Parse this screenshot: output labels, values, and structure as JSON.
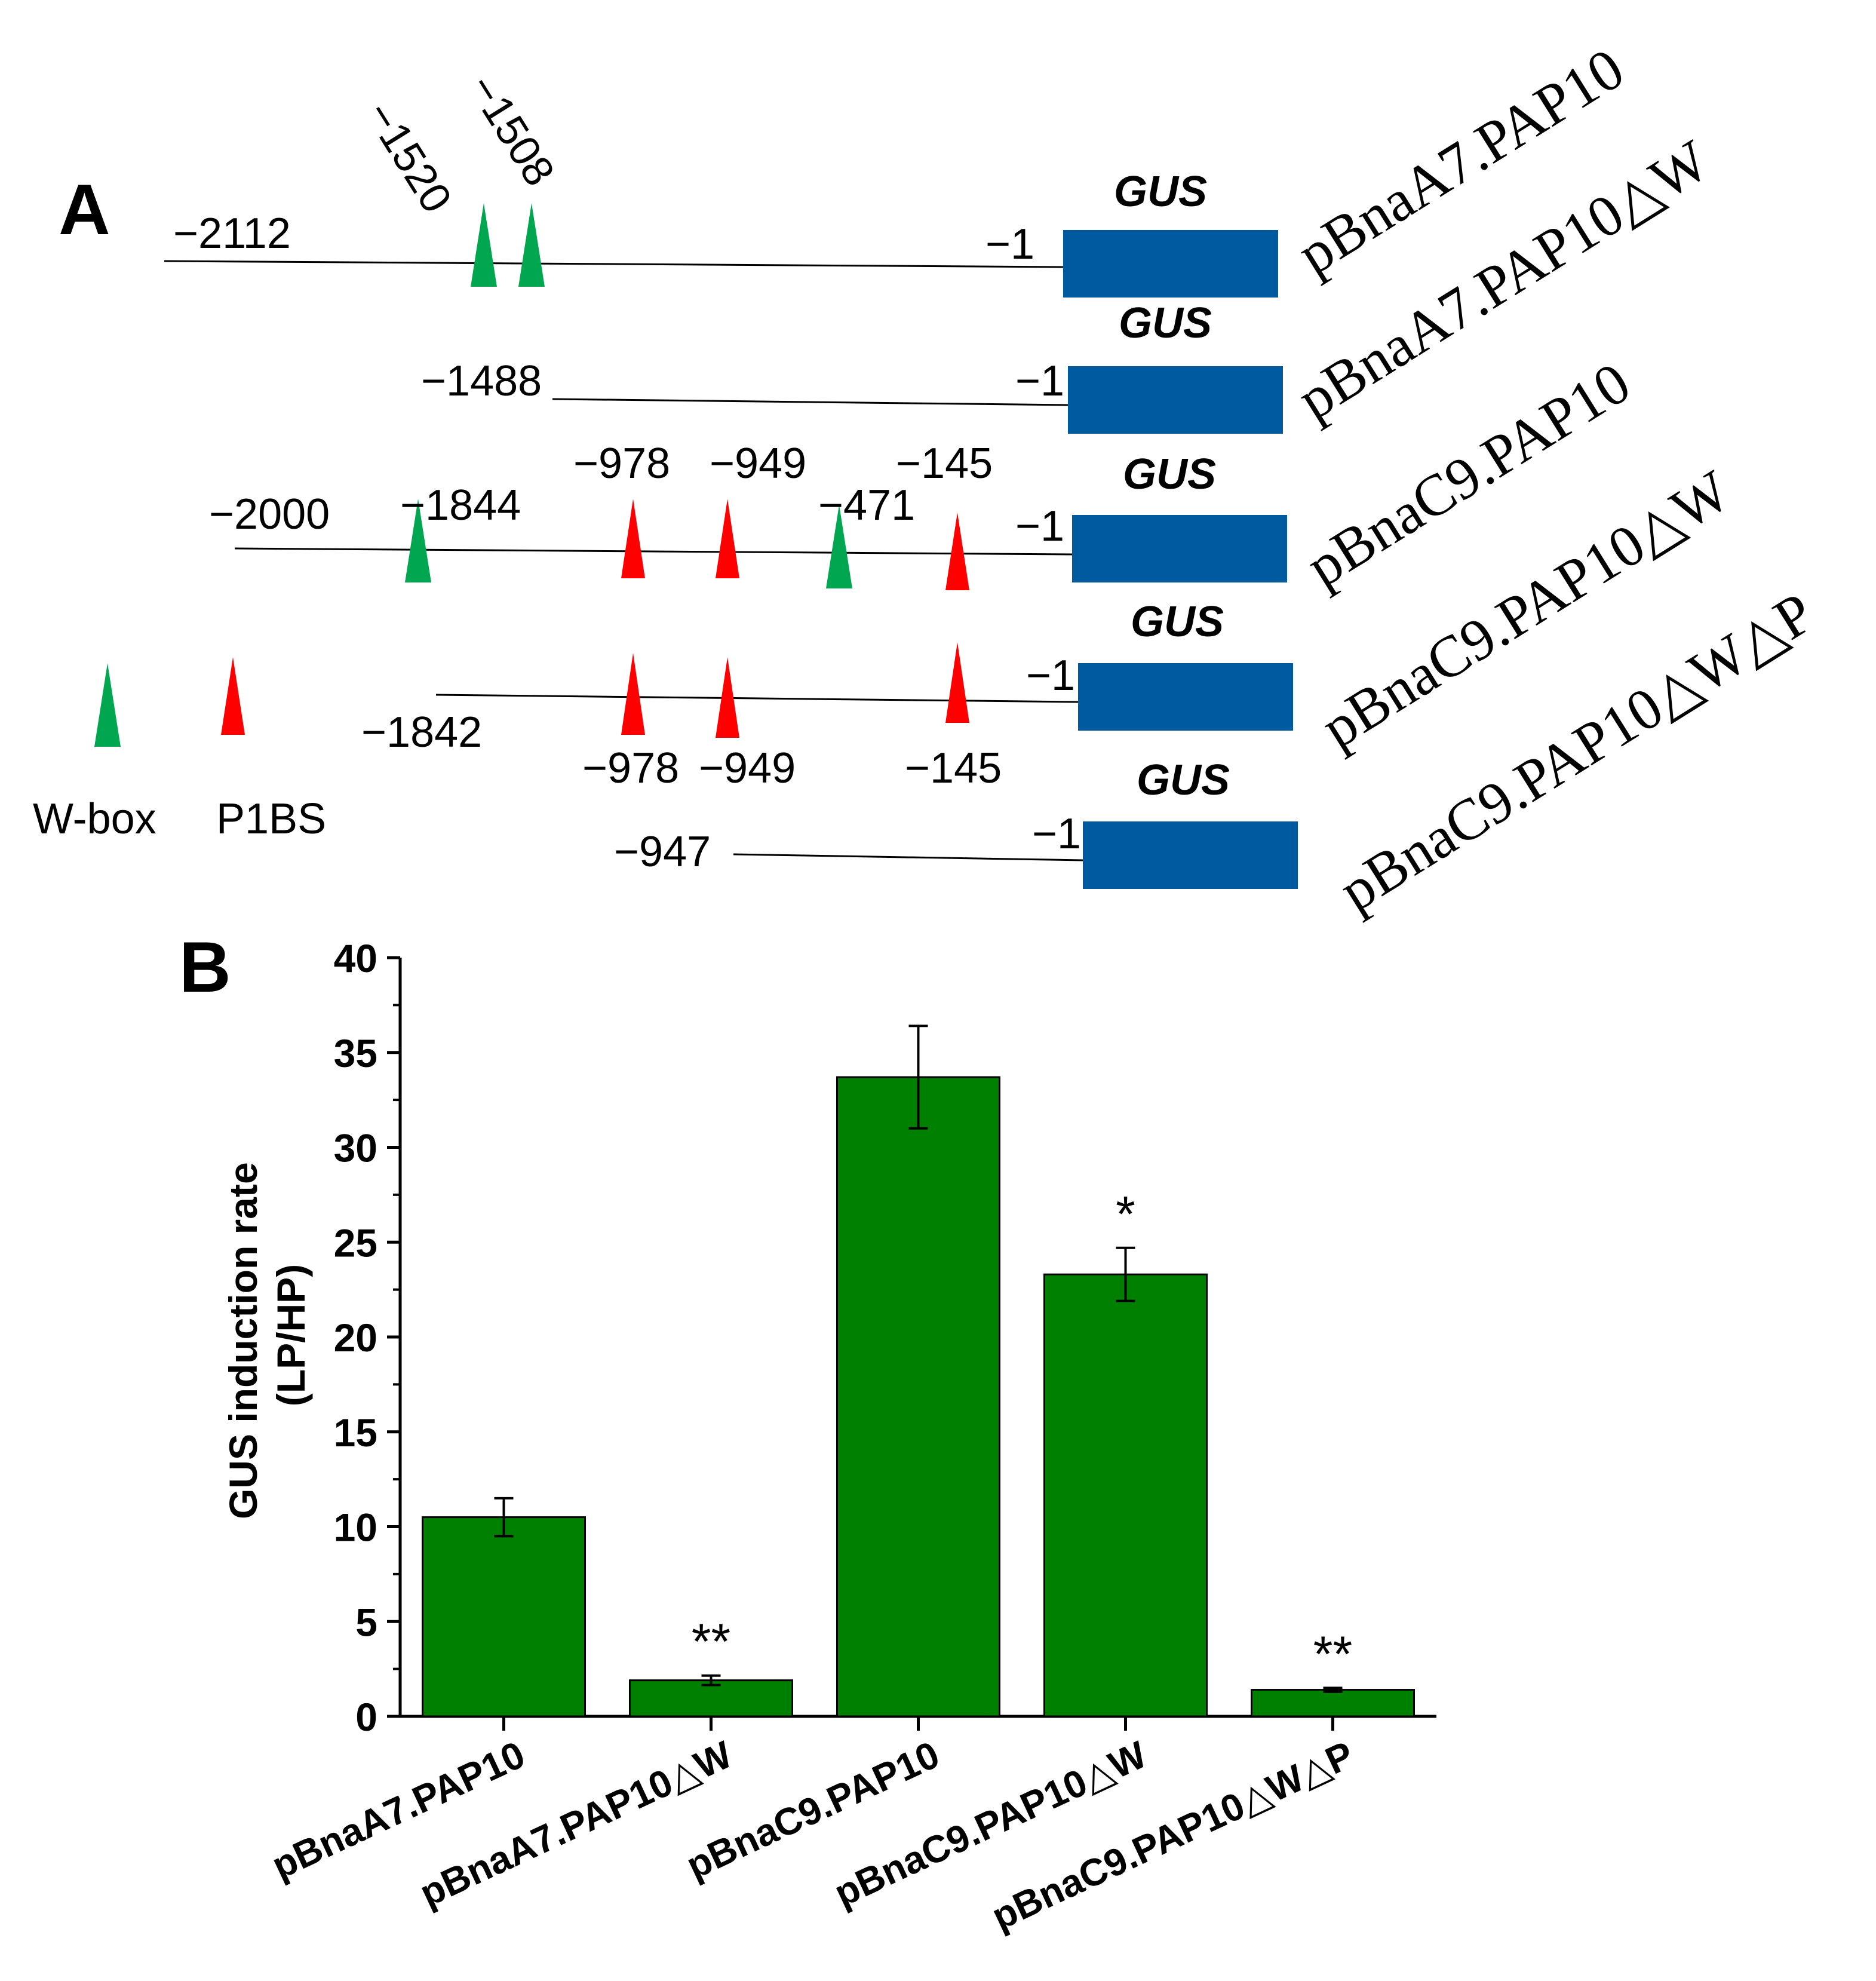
{
  "colors": {
    "green_box": "#00a650",
    "red_box": "#ff0000",
    "gus_box": "#005aa0",
    "bar_fill": "#008000",
    "ink": "#000000"
  },
  "panel_a": {
    "label": "A",
    "gus_label": "GUS",
    "legend": {
      "wbox_label": "W-box",
      "p1bs_label": "P1BS"
    },
    "constructs": [
      {
        "name": "pBnaA7.PAP10",
        "start": "−2112",
        "end": "−1",
        "sites": [
          {
            "type": "W-box",
            "pos": -1520,
            "label": "−1520",
            "label_side": "above"
          },
          {
            "type": "W-box",
            "pos": -1508,
            "label": "−1508",
            "label_side": "above"
          }
        ]
      },
      {
        "name": "pBnaA7.PAP10△W",
        "start": "−1488",
        "end": "−1",
        "sites": []
      },
      {
        "name": "pBnaC9.PAP10",
        "start": "−2000",
        "end": "−1",
        "sites": [
          {
            "type": "W-box",
            "pos": -1844,
            "label": "−1844",
            "label_side": "above"
          },
          {
            "type": "P1BS",
            "pos": -978,
            "label": "−978",
            "label_side": "above"
          },
          {
            "type": "P1BS",
            "pos": -949,
            "label": "−949",
            "label_side": "above"
          },
          {
            "type": "W-box",
            "pos": -471,
            "label": "−471",
            "label_side": "above"
          },
          {
            "type": "P1BS",
            "pos": -145,
            "label": "−145",
            "label_side": "above"
          }
        ]
      },
      {
        "name": "pBnaC9.PAP10△W",
        "start": "−1842",
        "end": "−1",
        "sites": [
          {
            "type": "P1BS",
            "pos": -978,
            "label": "−978",
            "label_side": "below"
          },
          {
            "type": "P1BS",
            "pos": -949,
            "label": "−949",
            "label_side": "below"
          },
          {
            "type": "P1BS",
            "pos": -145,
            "label": "−145",
            "label_side": "below"
          }
        ]
      },
      {
        "name": "pBnaC9.PAP10△W△P",
        "start": "−947",
        "end": "−1",
        "sites": []
      }
    ]
  },
  "chart_data": {
    "type": "bar",
    "panel_label": "B",
    "ylabel_line1": "GUS induction rate",
    "ylabel_line2": "(LP/HP)",
    "ylim": [
      0,
      40
    ],
    "yticks": [
      0,
      5,
      10,
      15,
      20,
      25,
      30,
      35,
      40
    ],
    "categories": [
      "pBnaA7.PAP10",
      "pBnaA7.PAP10△W",
      "pBnaC9.PAP10",
      "pBnaC9.PAP10△W",
      "pBnaC9.PAP10△W△P"
    ],
    "values": [
      10.5,
      1.9,
      33.7,
      23.3,
      1.4
    ],
    "errors": [
      1.0,
      0.25,
      2.7,
      1.4,
      0.1
    ],
    "significance": [
      "",
      "**",
      "",
      "*",
      "**"
    ]
  }
}
